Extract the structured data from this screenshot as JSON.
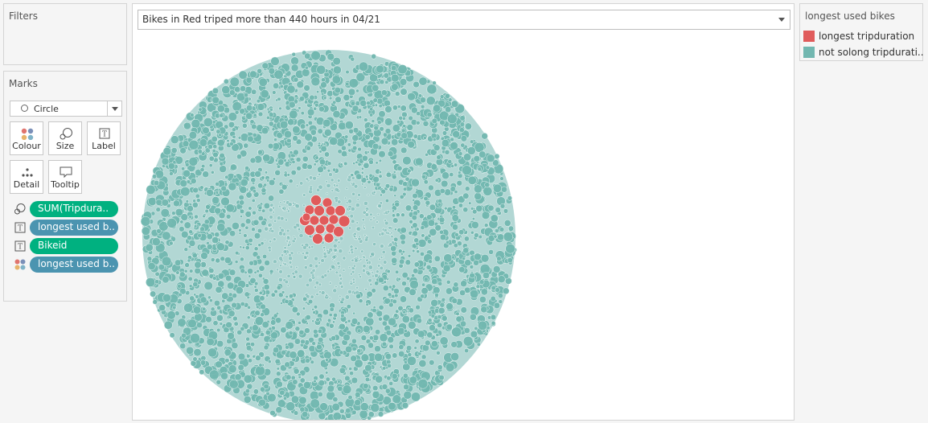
{
  "filters": {
    "title": "Filters"
  },
  "marks": {
    "title": "Marks",
    "mark_type": "Circle",
    "buttons": {
      "colour": "Colour",
      "size": "Size",
      "label": "Label",
      "detail": "Detail",
      "tooltip": "Tooltip"
    },
    "pills": [
      {
        "icon": "size-icon",
        "label": "SUM(Tripdura..",
        "color": "#00b180"
      },
      {
        "icon": "label-icon",
        "label": "longest used b..",
        "color": "#4b94b0"
      },
      {
        "icon": "label-icon",
        "label": "Bikeid",
        "color": "#00b180"
      },
      {
        "icon": "colour-icon",
        "label": "longest used b..",
        "color": "#4b94b0"
      }
    ]
  },
  "viz": {
    "title": "Bikes in Red triped more than 440 hours in 04/21"
  },
  "legend": {
    "title": "longest used bikes",
    "items": [
      {
        "label": "longest tripduration",
        "color": "#e05b5b"
      },
      {
        "label": "not solong tripdurati..",
        "color": "#72b7b0"
      }
    ]
  },
  "chart_data": {
    "type": "packed-bubble",
    "size_measure": "SUM(Tripduration)",
    "color_measure": "longest used bikes",
    "detail": "Bikeid",
    "groups": [
      {
        "name": "longest tripduration",
        "color": "#e05b5b",
        "approx_count": 22
      },
      {
        "name": "not solong tripdurati..",
        "color": "#72b7b0",
        "approx_count": "thousands"
      }
    ]
  }
}
